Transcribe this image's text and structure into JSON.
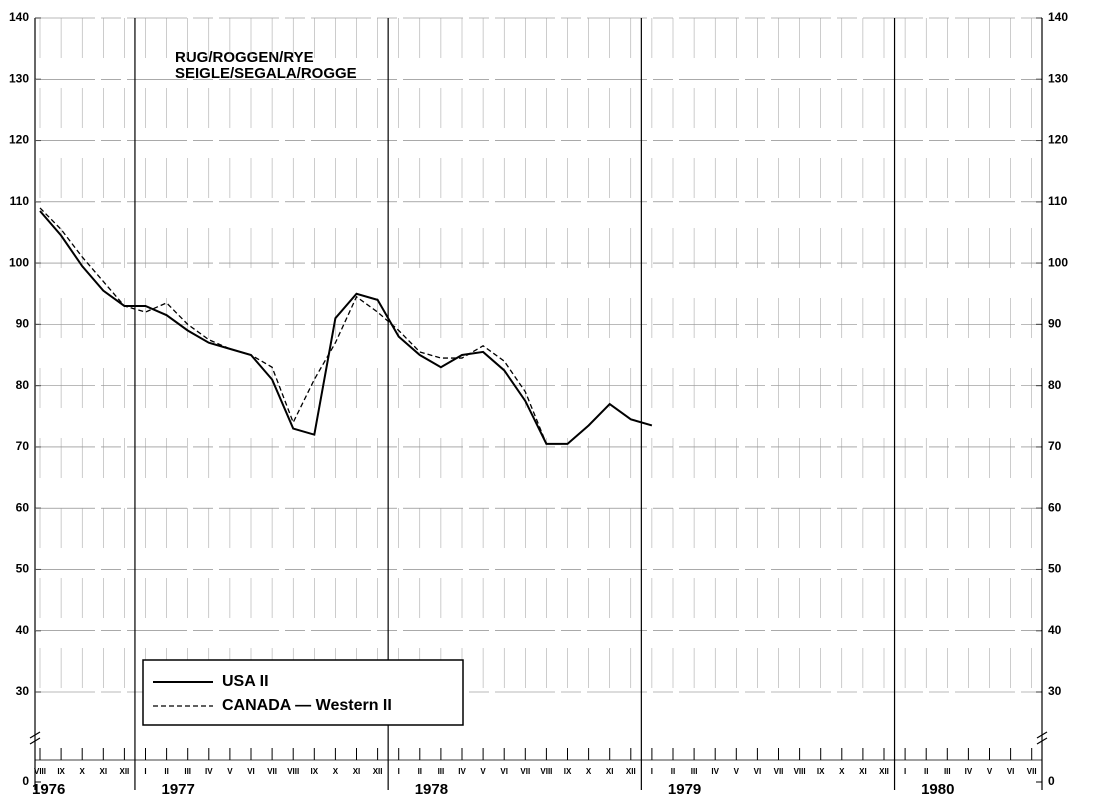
{
  "chart_data": {
    "type": "line",
    "title": [
      "RUG/ROGGEN/RYE",
      "SEIGLE/SEGALA/ROGGE"
    ],
    "categories": [
      "VIII",
      "IX",
      "X",
      "XI",
      "XII",
      "I",
      "II",
      "III",
      "IV",
      "V",
      "VI",
      "VII",
      "VIII",
      "IX",
      "X",
      "XI",
      "XII",
      "I",
      "II",
      "III",
      "IV",
      "V",
      "VI",
      "VII",
      "VIII",
      "IX",
      "X",
      "XI",
      "XII",
      "I",
      "II",
      "III",
      "IV",
      "V",
      "VI",
      "VII",
      "VIII",
      "IX",
      "X",
      "XI",
      "XII",
      "I",
      "II",
      "III",
      "IV",
      "V",
      "VI",
      "VII"
    ],
    "years": [
      "1976",
      "1977",
      "1978",
      "1979",
      "1980"
    ],
    "series": [
      {
        "name": "USA II",
        "color": "#000000",
        "dash": false,
        "values": [
          108.5,
          104.5,
          99.5,
          95.5,
          93,
          93,
          91.5,
          89,
          87,
          86,
          85,
          81,
          73,
          72,
          91,
          95,
          94,
          88,
          85,
          83,
          85,
          85.5,
          82.5,
          77.5,
          70.5,
          70.5,
          73.5,
          77,
          74.5,
          73.5,
          null,
          null,
          null,
          null,
          null,
          null,
          null,
          null,
          null,
          null,
          null,
          null,
          null,
          null,
          null,
          null,
          null,
          null
        ]
      },
      {
        "name": "CANADA — Western II",
        "color": "#000000",
        "dash": true,
        "values": [
          109,
          105.5,
          101,
          97,
          93,
          92,
          93.5,
          90,
          87.5,
          86,
          85,
          83,
          74,
          81,
          87,
          94.5,
          92,
          89,
          85.5,
          84.5,
          84.5,
          86.5,
          84,
          79,
          70.5,
          null,
          null,
          null,
          null,
          null,
          null,
          null,
          null,
          null,
          null,
          null,
          null,
          null,
          null,
          null,
          null,
          null,
          null,
          null,
          null,
          null,
          null,
          null
        ]
      }
    ],
    "ylim": [
      0,
      140
    ],
    "yticks": [
      0,
      30,
      40,
      50,
      60,
      70,
      80,
      90,
      100,
      110,
      120,
      130,
      140
    ],
    "grid": true,
    "legend": "bottom-left"
  }
}
